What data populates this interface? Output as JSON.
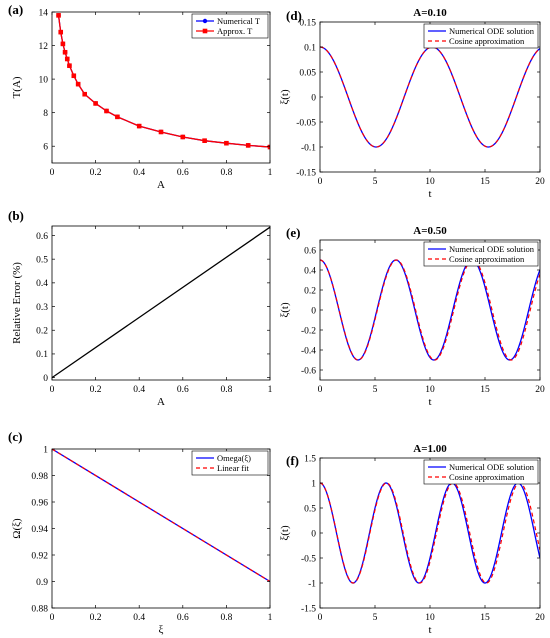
{
  "figure": {
    "panels": [
      {
        "label": "(a)",
        "title": "",
        "type": "line",
        "xlabel": "A",
        "ylabel": "T(A)",
        "ylabel_rot": true,
        "xlim": [
          0,
          1
        ],
        "ylim": [
          5,
          14
        ],
        "xticks": [
          0,
          0.2,
          0.4,
          0.6,
          0.8,
          1
        ],
        "xtick_labels": [
          "0",
          "0.2",
          "0.4",
          "0.6",
          "0.8",
          "1"
        ],
        "yticks": [
          6,
          8,
          10,
          12,
          14
        ],
        "ytick_labels": [
          "6",
          "8",
          "10",
          "12",
          "14"
        ],
        "legend": [
          "Numerical T",
          "Approx. T"
        ]
      },
      {
        "label": "(b)",
        "title": "",
        "type": "line",
        "xlabel": "A",
        "ylabel": "Relative Error (%)",
        "ylabel_rot": true,
        "xlim": [
          0,
          1
        ],
        "ylim": [
          -0.01,
          0.64
        ],
        "xticks": [
          0,
          0.2,
          0.4,
          0.6,
          0.8,
          1
        ],
        "xtick_labels": [
          "0",
          "0.2",
          "0.4",
          "0.6",
          "0.8",
          "1"
        ],
        "yticks": [
          0,
          0.1,
          0.2,
          0.3,
          0.4,
          0.5,
          0.6
        ],
        "ytick_labels": [
          "0",
          "0.1",
          "0.2",
          "0.3",
          "0.4",
          "0.5",
          "0.6"
        ],
        "legend": []
      },
      {
        "label": "(c)",
        "title": "",
        "type": "line",
        "xlabel": "ξ",
        "ylabel": "Ω(ξ)",
        "ylabel_rot": true,
        "xlim": [
          0,
          1
        ],
        "ylim": [
          0.88,
          1.0
        ],
        "xticks": [
          0,
          0.2,
          0.4,
          0.6,
          0.8,
          1
        ],
        "xtick_labels": [
          "0",
          "0.2",
          "0.4",
          "0.6",
          "0.8",
          "1"
        ],
        "yticks": [
          0.88,
          0.9,
          0.92,
          0.94,
          0.96,
          0.98,
          1.0
        ],
        "ytick_labels": [
          "0.88",
          "0.9",
          "0.92",
          "0.94",
          "0.96",
          "0.98",
          "1"
        ],
        "legend": [
          "Omega(ξ)",
          "Linear fit"
        ]
      },
      {
        "label": "(d)",
        "title": "A=0.10",
        "type": "line",
        "xlabel": "t",
        "ylabel": "ξ(t)",
        "ylabel_rot": true,
        "xlim": [
          0,
          20
        ],
        "ylim": [
          -0.15,
          0.15
        ],
        "xticks": [
          0,
          5,
          10,
          15,
          20
        ],
        "xtick_labels": [
          "0",
          "5",
          "10",
          "15",
          "20"
        ],
        "yticks": [
          -0.15,
          -0.1,
          -0.05,
          0,
          0.05,
          0.1,
          0.15
        ],
        "ytick_labels": [
          "-0.15",
          "-0.1",
          "-0.05",
          "0",
          "0.05",
          "0.1",
          "0.15"
        ],
        "legend": [
          "Numerical ODE solution",
          "Cosine approximation"
        ]
      },
      {
        "label": "(e)",
        "title": "A=0.50",
        "type": "line",
        "xlabel": "t",
        "ylabel": "ξ(t)",
        "ylabel_rot": true,
        "xlim": [
          0,
          20
        ],
        "ylim": [
          -0.7,
          0.7
        ],
        "xticks": [
          0,
          5,
          10,
          15,
          20
        ],
        "xtick_labels": [
          "0",
          "5",
          "10",
          "15",
          "20"
        ],
        "yticks": [
          -0.6,
          -0.4,
          -0.2,
          0,
          0.2,
          0.4,
          0.6
        ],
        "ytick_labels": [
          "-0.6",
          "-0.4",
          "-0.2",
          "0",
          "0.2",
          "0.4",
          "0.6"
        ],
        "legend": [
          "Numerical ODE solution",
          "Cosine approximation"
        ]
      },
      {
        "label": "(f)",
        "title": "A=1.00",
        "type": "line",
        "xlabel": "t",
        "ylabel": "ξ(t)",
        "ylabel_rot": true,
        "xlim": [
          0,
          20
        ],
        "ylim": [
          -1.5,
          1.5
        ],
        "xticks": [
          0,
          5,
          10,
          15,
          20
        ],
        "xtick_labels": [
          "0",
          "5",
          "10",
          "15",
          "20"
        ],
        "yticks": [
          -1.5,
          -1,
          -0.5,
          0,
          0.5,
          1,
          1.5
        ],
        "ytick_labels": [
          "-1.5",
          "-1",
          "-0.5",
          "0",
          "0.5",
          "1",
          "1.5"
        ],
        "legend": [
          "Numerical ODE solution",
          "Cosine approximation"
        ]
      }
    ]
  },
  "chart_data": [
    {
      "type": "line",
      "title": "",
      "xlabel": "A",
      "ylabel": "T(A)",
      "xlim": [
        0,
        1
      ],
      "ylim": [
        5,
        14
      ],
      "series": [
        {
          "name": "Numerical T",
          "color": "#0000ff",
          "marker": "circle",
          "x": [
            0.03,
            0.04,
            0.05,
            0.06,
            0.07,
            0.08,
            0.1,
            0.12,
            0.15,
            0.2,
            0.25,
            0.3,
            0.4,
            0.5,
            0.6,
            0.7,
            0.8,
            0.9,
            1.0
          ],
          "y": [
            13.8,
            12.8,
            12.1,
            11.6,
            11.2,
            10.8,
            10.2,
            9.7,
            9.1,
            8.55,
            8.1,
            7.75,
            7.2,
            6.85,
            6.55,
            6.33,
            6.18,
            6.05,
            5.95
          ]
        },
        {
          "name": "Approx. T",
          "color": "#ff0000",
          "marker": "square",
          "x": [
            0.03,
            0.04,
            0.05,
            0.06,
            0.07,
            0.08,
            0.1,
            0.12,
            0.15,
            0.2,
            0.25,
            0.3,
            0.4,
            0.5,
            0.6,
            0.7,
            0.8,
            0.9,
            1.0
          ],
          "y": [
            13.8,
            12.8,
            12.1,
            11.6,
            11.2,
            10.8,
            10.2,
            9.7,
            9.1,
            8.55,
            8.1,
            7.75,
            7.2,
            6.85,
            6.55,
            6.33,
            6.18,
            6.05,
            5.95
          ]
        }
      ]
    },
    {
      "type": "line",
      "title": "",
      "xlabel": "A",
      "ylabel": "Relative Error (%)",
      "xlim": [
        0,
        1
      ],
      "ylim": [
        -0.01,
        0.64
      ],
      "series": [
        {
          "name": "",
          "color": "#000000",
          "x": [
            0,
            1
          ],
          "y": [
            0,
            0.635
          ]
        }
      ]
    },
    {
      "type": "line",
      "title": "",
      "xlabel": "ξ",
      "ylabel": "Ω(ξ)",
      "xlim": [
        0,
        1
      ],
      "ylim": [
        0.88,
        1.0
      ],
      "series": [
        {
          "name": "Omega(ξ)",
          "color": "#0000ff",
          "x": [
            0,
            1
          ],
          "y": [
            1.0,
            0.9
          ]
        },
        {
          "name": "Linear fit",
          "color": "#ff0000",
          "dashed": true,
          "x": [
            0,
            1
          ],
          "y": [
            1.0,
            0.9
          ]
        }
      ]
    },
    {
      "type": "line",
      "title": "A=0.10",
      "xlabel": "t",
      "ylabel": "ξ(t)",
      "xlim": [
        0,
        20
      ],
      "ylim": [
        -0.15,
        0.15
      ],
      "series": [
        {
          "name": "Numerical ODE solution",
          "color": "#0000ff",
          "amplitude": 0.1,
          "period": 10.2,
          "t_max": 20
        },
        {
          "name": "Cosine approximation",
          "color": "#ff0000",
          "dashed": true,
          "amplitude": 0.1,
          "period": 10.2,
          "t_max": 20
        }
      ]
    },
    {
      "type": "line",
      "title": "A=0.50",
      "xlabel": "t",
      "ylabel": "ξ(t)",
      "xlim": [
        0,
        20
      ],
      "ylim": [
        -0.7,
        0.7
      ],
      "series": [
        {
          "name": "Numerical ODE solution",
          "color": "#0000ff",
          "amplitude": 0.5,
          "period": 6.9,
          "t_max": 20
        },
        {
          "name": "Cosine approximation",
          "color": "#ff0000",
          "dashed": true,
          "amplitude": 0.5,
          "period": 6.95,
          "t_max": 20
        }
      ]
    },
    {
      "type": "line",
      "title": "A=1.00",
      "xlabel": "t",
      "ylabel": "ξ(t)",
      "xlim": [
        0,
        20
      ],
      "ylim": [
        -1.5,
        1.5
      ],
      "series": [
        {
          "name": "Numerical ODE solution",
          "color": "#0000ff",
          "amplitude": 1.0,
          "period": 6.0,
          "t_max": 20
        },
        {
          "name": "Cosine approximation",
          "color": "#ff0000",
          "dashed": true,
          "amplitude": 1.0,
          "period": 6.05,
          "t_max": 20
        }
      ]
    }
  ]
}
